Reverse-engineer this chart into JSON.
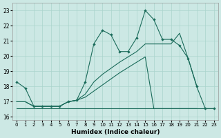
{
  "xlabel": "Humidex (Indice chaleur)",
  "background_color": "#cce8e4",
  "grid_color": "#aad4cc",
  "line_color": "#1a6b5a",
  "xlim": [
    -0.5,
    23.5
  ],
  "ylim": [
    15.8,
    23.5
  ],
  "yticks": [
    16,
    17,
    18,
    19,
    20,
    21,
    22,
    23
  ],
  "xticks": [
    0,
    1,
    2,
    3,
    4,
    5,
    6,
    7,
    8,
    9,
    10,
    11,
    12,
    13,
    14,
    15,
    16,
    17,
    18,
    19,
    20,
    21,
    22,
    23
  ],
  "line1_x": [
    0,
    1,
    2,
    3,
    4,
    5,
    6,
    7,
    8,
    9,
    10,
    11,
    12,
    13,
    14,
    15,
    16,
    17,
    18,
    19,
    20,
    21,
    22,
    23
  ],
  "line1_y": [
    18.3,
    17.9,
    16.7,
    16.7,
    16.7,
    16.7,
    17.0,
    17.1,
    18.3,
    20.8,
    21.7,
    21.4,
    20.3,
    20.3,
    21.2,
    23.0,
    22.4,
    21.1,
    21.1,
    20.7,
    19.85,
    18.0,
    16.55,
    16.55
  ],
  "line2_x": [
    0,
    1,
    2,
    3,
    4,
    5,
    6,
    7,
    8,
    9,
    10,
    11,
    12,
    13,
    14,
    15,
    16,
    17,
    18,
    19,
    20,
    21,
    22,
    23
  ],
  "line2_y": [
    16.55,
    16.55,
    16.55,
    16.55,
    16.55,
    16.55,
    16.55,
    16.55,
    16.55,
    16.55,
    16.55,
    16.55,
    16.55,
    16.55,
    16.55,
    16.55,
    16.55,
    16.55,
    16.55,
    16.55,
    16.55,
    16.55,
    16.55,
    16.55
  ],
  "line3_x": [
    0,
    1,
    2,
    3,
    4,
    5,
    6,
    7,
    8,
    9,
    10,
    11,
    12,
    13,
    14,
    15,
    16,
    17,
    18,
    19,
    20,
    21
  ],
  "line3_y": [
    17.0,
    17.0,
    16.7,
    16.7,
    16.7,
    16.7,
    17.0,
    17.1,
    17.5,
    18.3,
    18.8,
    19.2,
    19.6,
    19.95,
    20.3,
    20.8,
    20.8,
    20.8,
    20.8,
    21.5,
    19.85,
    18.05
  ],
  "line4_x": [
    0,
    1,
    2,
    3,
    4,
    5,
    6,
    7,
    8,
    9,
    10,
    11,
    12,
    13,
    14,
    15,
    16,
    17,
    18,
    19,
    20,
    21
  ],
  "line4_y": [
    17.0,
    17.0,
    16.7,
    16.7,
    16.7,
    16.7,
    17.0,
    17.1,
    17.3,
    17.7,
    18.1,
    18.5,
    18.9,
    19.25,
    19.6,
    19.95,
    16.55,
    16.55,
    16.55,
    16.55,
    16.55,
    16.55
  ]
}
